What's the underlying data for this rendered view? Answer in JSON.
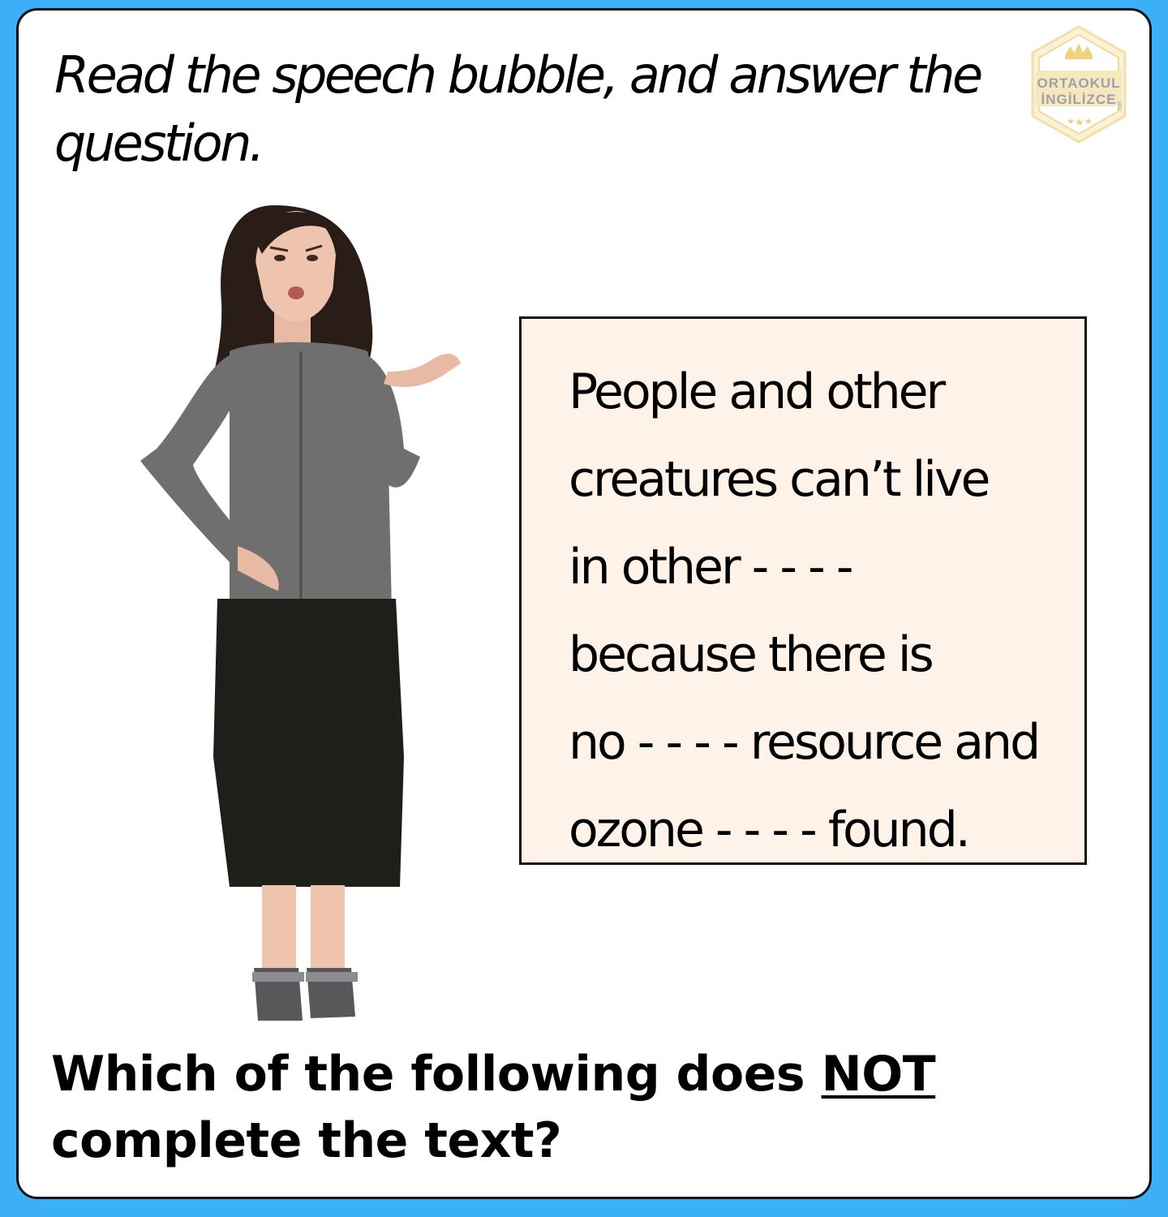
{
  "instruction": "Read the speech bubble, and answer the question.",
  "logo": {
    "line1": "ORTAOKUL",
    "line2": "İNGİLİZCE",
    "suffix": ".net"
  },
  "speech_bubble": {
    "lines": [
      "People and other",
      "creatures can’t live",
      "in other - - - -",
      "because there is",
      "no - - - - resource and",
      "ozone - - - - found."
    ]
  },
  "question": {
    "before": "Which of the following does ",
    "emphasis": "NOT",
    "after": " complete the text?"
  },
  "colors": {
    "background": "#3bb0f8",
    "card": "#ffffff",
    "bubble": "#fef2e9"
  }
}
